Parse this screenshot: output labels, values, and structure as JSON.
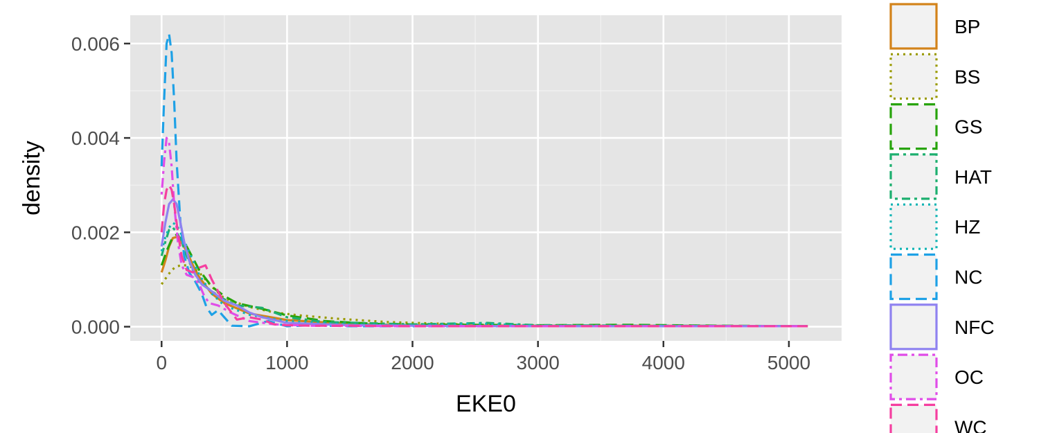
{
  "chart_data": {
    "type": "line",
    "title": "",
    "xlabel": "EKE0",
    "ylabel": "density",
    "xlim": [
      -250,
      5420
    ],
    "ylim": [
      -0.0003,
      0.0066
    ],
    "x_ticks": [
      0,
      1000,
      2000,
      3000,
      4000,
      5000
    ],
    "x_tick_labels": [
      "0",
      "1000",
      "2000",
      "3000",
      "4000",
      "5000"
    ],
    "y_ticks": [
      0,
      0.002,
      0.004,
      0.006
    ],
    "y_tick_labels": [
      "0.000",
      "0.002",
      "0.004",
      "0.006"
    ],
    "grid": true,
    "panel_background": "#e5e5e5",
    "legend_placement": "right",
    "series": [
      {
        "name": "BP",
        "color": "#D3831A",
        "dash": "solid",
        "x": [
          0,
          30,
          60,
          90,
          120,
          150,
          200,
          250,
          300,
          400,
          500,
          700,
          1000,
          1500,
          2000,
          3000,
          4000,
          5150
        ],
        "y": [
          0.00115,
          0.0014,
          0.0017,
          0.00188,
          0.0019,
          0.00182,
          0.0016,
          0.0013,
          0.00105,
          0.0007,
          0.0005,
          0.00028,
          0.00014,
          6e-05,
          3e-05,
          2e-05,
          2e-05,
          1e-05
        ]
      },
      {
        "name": "BS",
        "color": "#999A00",
        "dash": "dotted",
        "x": [
          0,
          40,
          80,
          120,
          160,
          200,
          250,
          300,
          400,
          500,
          700,
          900,
          1100,
          1400,
          1800,
          2500,
          3500,
          5150
        ],
        "y": [
          0.0009,
          0.00105,
          0.0012,
          0.00128,
          0.0013,
          0.0013,
          0.00125,
          0.00115,
          0.00085,
          0.0006,
          0.00042,
          0.0003,
          0.00024,
          0.00017,
          0.0001,
          4e-05,
          2e-05,
          1e-05
        ]
      },
      {
        "name": "GS",
        "color": "#28A40C",
        "dash": "longdash",
        "x": [
          0,
          40,
          80,
          120,
          160,
          200,
          250,
          300,
          400,
          500,
          600,
          800,
          1000,
          1300,
          1700,
          2000,
          3000,
          3700,
          4500,
          5150
        ],
        "y": [
          0.0013,
          0.0016,
          0.00185,
          0.00195,
          0.00185,
          0.0017,
          0.00145,
          0.0012,
          0.00085,
          0.00065,
          0.0005,
          0.00038,
          0.00024,
          0.00012,
          6e-05,
          5e-05,
          3e-05,
          4e-05,
          2e-05,
          1e-05
        ]
      },
      {
        "name": "HAT",
        "color": "#1DAF6F",
        "dash": "twodash",
        "x": [
          0,
          30,
          60,
          90,
          120,
          160,
          200,
          250,
          300,
          400,
          500,
          600,
          800,
          1000,
          1300,
          2000,
          2600,
          3000,
          4000,
          5150
        ],
        "y": [
          0.0015,
          0.0018,
          0.00205,
          0.0021,
          0.002,
          0.0018,
          0.0015,
          0.0012,
          0.00095,
          0.00075,
          0.00058,
          0.00045,
          0.0004,
          0.0002,
          0.0001,
          5e-05,
          8e-05,
          3e-05,
          2e-05,
          1e-05
        ]
      },
      {
        "name": "HZ",
        "color": "#10B4B4",
        "dash": "dotted",
        "x": [
          0,
          30,
          60,
          90,
          120,
          150,
          200,
          250,
          300,
          400,
          500,
          700,
          1000,
          1500,
          2000,
          2500,
          3000,
          4000,
          5150
        ],
        "y": [
          0.0016,
          0.0019,
          0.0021,
          0.0022,
          0.00215,
          0.002,
          0.0017,
          0.0014,
          0.0011,
          0.0007,
          0.00045,
          0.00025,
          0.00012,
          5e-05,
          3e-05,
          7e-05,
          2e-05,
          2e-05,
          1e-05
        ]
      },
      {
        "name": "NC",
        "color": "#1EA1E6",
        "dash": "longdash",
        "x": [
          0,
          20,
          40,
          60,
          80,
          100,
          120,
          150,
          180,
          220,
          270,
          320,
          360,
          400,
          450,
          500,
          560,
          700,
          850,
          1000,
          1200,
          1500,
          2000,
          3000,
          5150
        ],
        "y": [
          0.0034,
          0.0048,
          0.006,
          0.0062,
          0.0058,
          0.0048,
          0.0035,
          0.0022,
          0.0015,
          0.00115,
          0.00095,
          0.0007,
          0.0004,
          0.00025,
          0.00035,
          0.0002,
          2e-05,
          1e-05,
          0.00012,
          1e-05,
          3e-05,
          1e-05,
          1e-05,
          1e-05,
          1e-05
        ]
      },
      {
        "name": "NFC",
        "color": "#8F82F0",
        "dash": "solid",
        "x": [
          0,
          30,
          60,
          90,
          120,
          150,
          180,
          220,
          270,
          320,
          400,
          500,
          600,
          700,
          800,
          1000,
          1500,
          2000,
          3000,
          5150
        ],
        "y": [
          0.0017,
          0.0022,
          0.0026,
          0.0027,
          0.0026,
          0.0022,
          0.0018,
          0.0014,
          0.0011,
          0.0009,
          0.00075,
          0.00055,
          0.00045,
          0.0003,
          0.0002,
          8e-05,
          3e-05,
          2e-05,
          1e-05,
          1e-05
        ]
      },
      {
        "name": "OC",
        "color": "#E04DE8",
        "dash": "dotdash",
        "x": [
          0,
          20,
          40,
          60,
          80,
          100,
          130,
          160,
          200,
          250,
          300,
          340,
          380,
          450,
          550,
          700,
          900,
          1200,
          2000,
          5150
        ],
        "y": [
          0.0028,
          0.0035,
          0.004,
          0.0039,
          0.0034,
          0.0026,
          0.0018,
          0.0013,
          0.0011,
          0.00105,
          0.0009,
          0.00065,
          0.0005,
          0.00045,
          0.0003,
          0.00012,
          5e-05,
          2e-05,
          1e-05,
          1e-05
        ]
      },
      {
        "name": "WC",
        "color": "#F53FA0",
        "dash": "longdash",
        "x": [
          0,
          20,
          40,
          60,
          80,
          100,
          130,
          160,
          200,
          250,
          300,
          350,
          400,
          500,
          600,
          700,
          800,
          900,
          1000,
          1200,
          1500,
          2000,
          3000,
          4000,
          5150
        ],
        "y": [
          0.002,
          0.0026,
          0.0029,
          0.003,
          0.0029,
          0.0026,
          0.002,
          0.0015,
          0.0012,
          0.00115,
          0.00125,
          0.0013,
          0.001,
          0.0005,
          0.00015,
          0.0002,
          0.00015,
          5e-05,
          3e-05,
          2e-05,
          2e-05,
          1e-05,
          1e-05,
          1e-05,
          1e-05
        ]
      }
    ]
  }
}
